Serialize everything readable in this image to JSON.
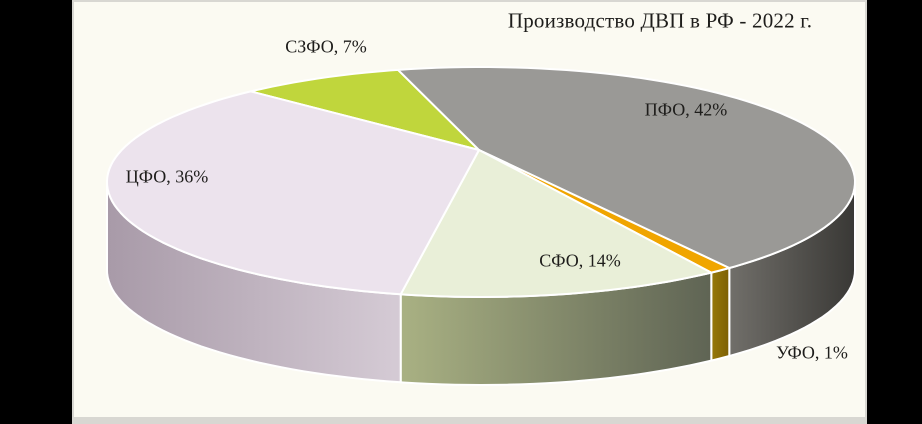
{
  "window": {
    "background_color": "#000000",
    "panel_background": "#fbfaf2",
    "panel_border_color": "#d8d7d2",
    "text_color": "#1e1d1b"
  },
  "chart_data": {
    "type": "pie",
    "effect": "3d",
    "title": "Производство ДВП в РФ - 2022 г.",
    "legend": "none",
    "units": "%",
    "total": 100,
    "start_angle_deg": -38,
    "direction": "clockwise",
    "slices": [
      {
        "id": "szfo",
        "category": "СЗФО",
        "value": 7,
        "data_label": "СЗФО, 7%",
        "color": "#c0d63c",
        "side_colors": null
      },
      {
        "id": "pfo",
        "category": "ПФО",
        "value": 42,
        "data_label": "ПФО, 42%",
        "color": "#9a9996",
        "side_colors": [
          "#716f6a",
          "#393835"
        ]
      },
      {
        "id": "ufo",
        "category": "УФО",
        "value": 1,
        "data_label": "УФО, 1%",
        "color": "#f0a500",
        "side_colors": [
          "#97790a",
          "#7d6004"
        ]
      },
      {
        "id": "sfo",
        "category": "СФО",
        "value": 14,
        "data_label": "СФО, 14%",
        "color": "#e9efd8",
        "side_colors": [
          "#a9b183",
          "#5f6454"
        ]
      },
      {
        "id": "cfo",
        "category": "ЦФО",
        "value": 36,
        "data_label": "ЦФО, 36%",
        "color": "#ece3ed",
        "side_colors": [
          "#a89aa8",
          "#d5cbd5"
        ]
      }
    ]
  }
}
